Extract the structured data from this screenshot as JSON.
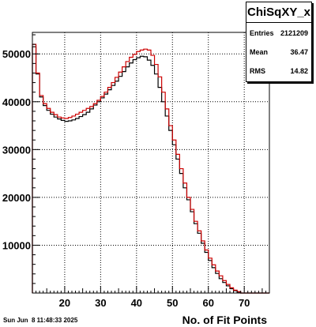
{
  "stats": {
    "title": "ChiSqXY_x",
    "rows": [
      {
        "key": "Entries",
        "value": "2121209"
      },
      {
        "key": "Mean",
        "value": "36.47"
      },
      {
        "key": "RMS",
        "value": "14.82"
      }
    ]
  },
  "timestamp": "Sun Jun  8 11:48:33 2025",
  "colors": {
    "series_a": "#000000",
    "series_b": "#cc0000",
    "grid": "#000000",
    "frame": "#000000"
  },
  "chart_data": {
    "type": "line",
    "title": "",
    "xlabel": "No. of Fit Points",
    "ylabel": "",
    "xlim": [
      11,
      77
    ],
    "ylim": [
      0,
      54500
    ],
    "grid": true,
    "legend_position": "top-right",
    "x_ticks": [
      20,
      30,
      40,
      50,
      60,
      70
    ],
    "y_ticks": [
      10000,
      20000,
      30000,
      40000,
      50000
    ],
    "y_tick_labels": [
      "10000",
      "20000",
      "30000",
      "40000",
      "50000"
    ],
    "bin_edges": [
      11,
      12,
      13,
      14,
      15,
      16,
      17,
      18,
      19,
      20,
      21,
      22,
      23,
      24,
      25,
      26,
      27,
      28,
      29,
      30,
      31,
      32,
      33,
      34,
      35,
      36,
      37,
      38,
      39,
      40,
      41,
      42,
      43,
      44,
      45,
      46,
      47,
      48,
      49,
      50,
      51,
      52,
      53,
      54,
      55,
      56,
      57,
      58,
      59,
      60,
      61,
      62,
      63,
      64,
      65,
      66,
      67,
      68,
      69,
      70,
      71,
      72,
      73,
      74,
      75,
      76,
      77
    ],
    "series": [
      {
        "values": [
          51500,
          45800,
          41000,
          39200,
          38200,
          37400,
          36800,
          36400,
          36100,
          35900,
          36000,
          36200,
          36500,
          36900,
          37300,
          37800,
          38500,
          39300,
          40000,
          40800,
          41600,
          42500,
          43400,
          44300,
          45300,
          46300,
          47300,
          48100,
          48800,
          49200,
          49500,
          49400,
          48700,
          47600,
          45800,
          43000,
          40000,
          37000,
          34000,
          31000,
          28000,
          25000,
          22000,
          19500,
          17000,
          14500,
          12500,
          10400,
          8500,
          6800,
          5300,
          4100,
          3000,
          2200,
          1500,
          900,
          500,
          200,
          0,
          0,
          0,
          0,
          0,
          0,
          0,
          0
        ]
      },
      {
        "values": [
          52000,
          46000,
          41300,
          39600,
          38600,
          37800,
          37300,
          36800,
          36600,
          36500,
          36700,
          37000,
          37400,
          37800,
          38200,
          38600,
          39000,
          39600,
          40300,
          41100,
          42000,
          43000,
          44000,
          45100,
          46200,
          47300,
          48400,
          49300,
          49900,
          50500,
          50800,
          51000,
          50800,
          49700,
          47800,
          45200,
          42000,
          38500,
          35000,
          32000,
          29000,
          26000,
          23000,
          20000,
          17500,
          15000,
          13000,
          10900,
          9000,
          7300,
          5900,
          4600,
          3600,
          2600,
          1800,
          1100,
          600,
          300,
          0,
          0,
          0,
          0,
          0,
          0,
          0,
          0
        ]
      }
    ]
  }
}
